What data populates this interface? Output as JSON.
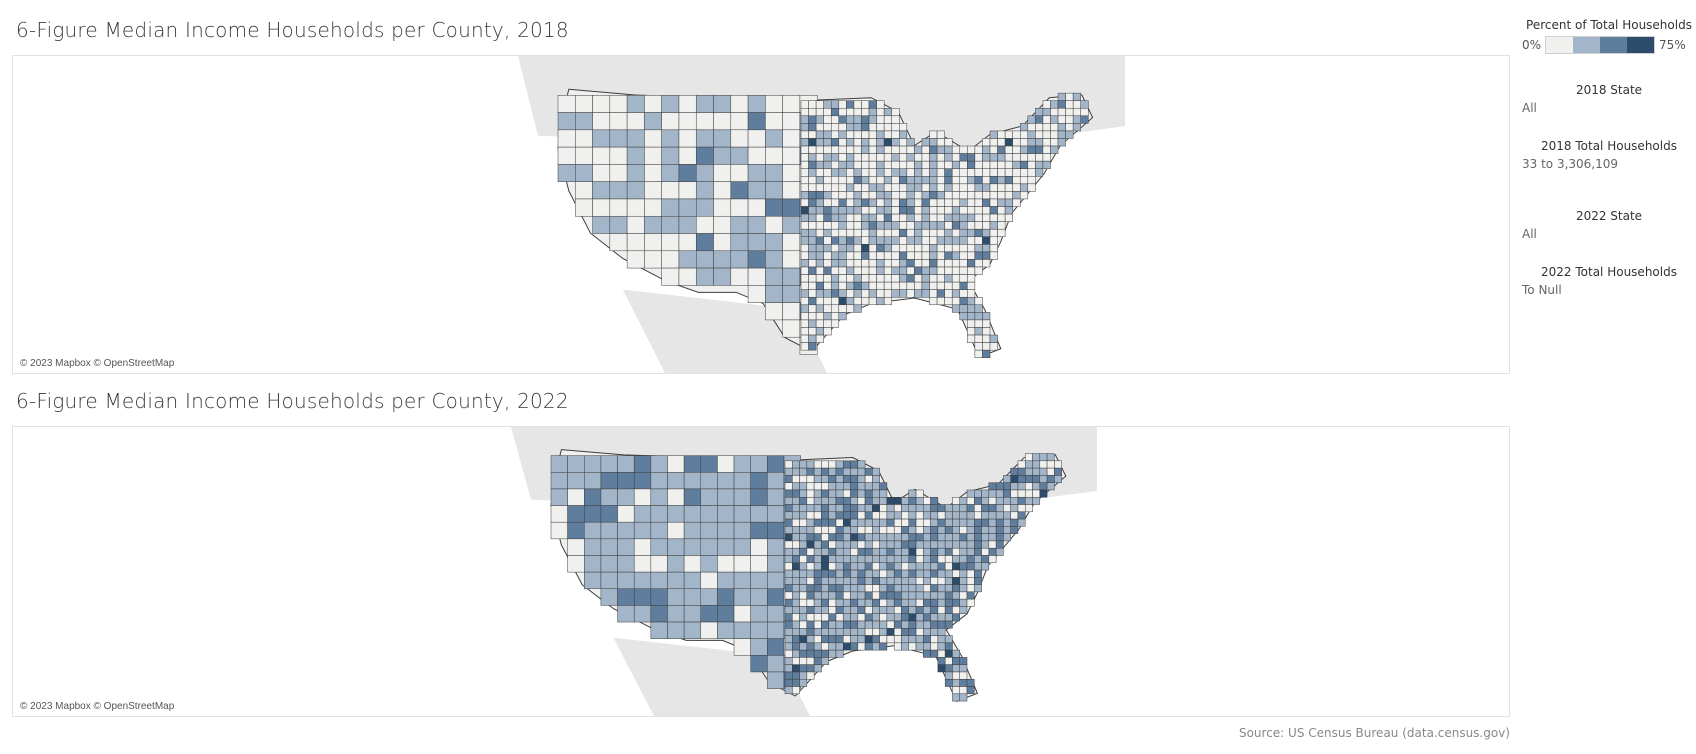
{
  "maps": [
    {
      "title": "6-Figure Median Income Households per County, 2018",
      "attribution": "© 2023 Mapbox © OpenStreetMap",
      "year": 2018
    },
    {
      "title": "6-Figure Median Income Households per County, 2022",
      "attribution": "© 2023 Mapbox © OpenStreetMap",
      "year": 2022
    }
  ],
  "legend": {
    "title": "Percent of Total Households",
    "min_label": "0%",
    "max_label": "75%",
    "colors": [
      "#f0f0ee",
      "#a3b5c9",
      "#5f7d9c",
      "#2c4c6b"
    ]
  },
  "filters": [
    {
      "title": "2018 State",
      "value": "All"
    },
    {
      "title": "2018 Total Households",
      "value": "33 to 3,306,109"
    },
    {
      "title": "2022 State",
      "value": "All"
    },
    {
      "title": "2022 Total Households",
      "value": "To Null"
    }
  ],
  "source": "Source: US Census Bureau (data.census.gov)",
  "colors": {
    "land_base": "#e6e6e6",
    "water": "#ffffff",
    "county_border": "#3d3d3d"
  }
}
